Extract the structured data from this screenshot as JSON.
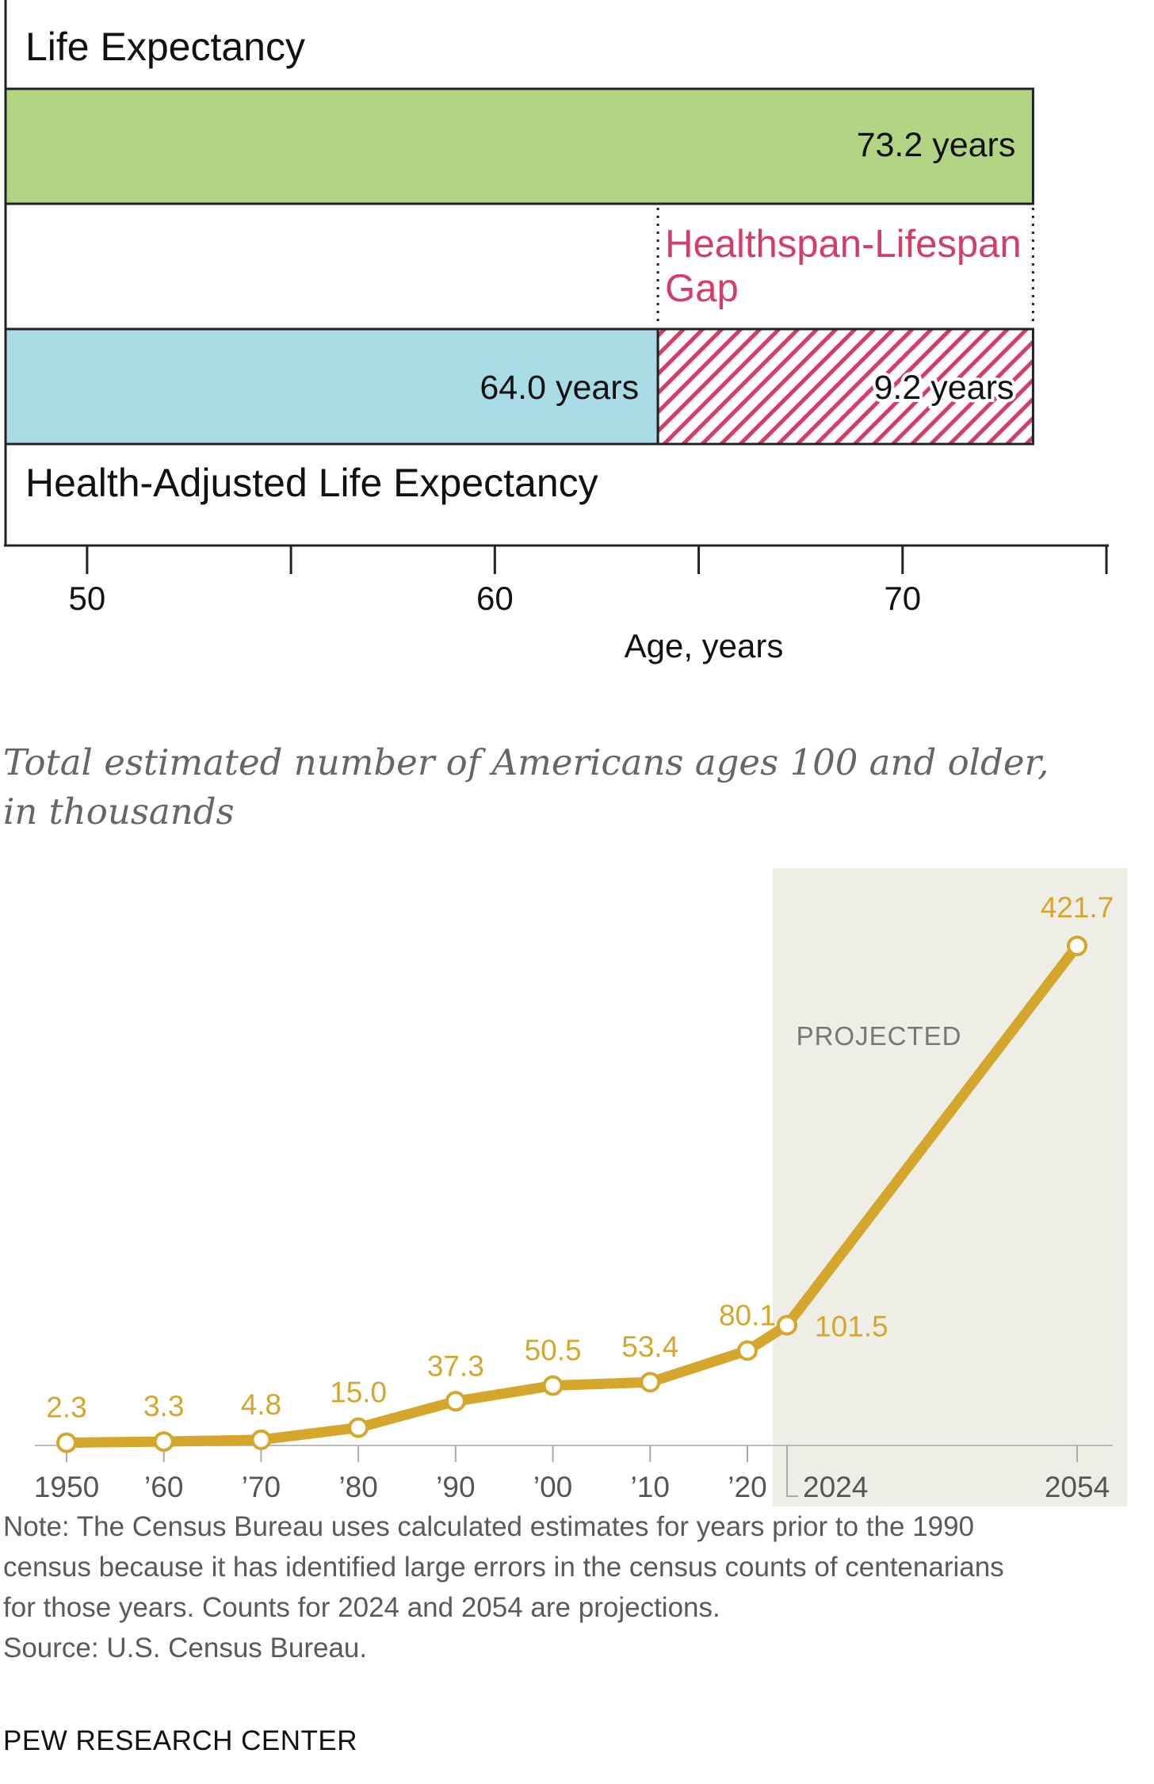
{
  "chart_data": [
    {
      "type": "bar",
      "orientation": "horizontal",
      "series": [
        {
          "name": "Life Expectancy",
          "start": 48,
          "value": 73.2,
          "label": "73.2 years",
          "color": "#b2d584"
        },
        {
          "name": "Health-Adjusted Life Expectancy",
          "start": 48,
          "value": 64.0,
          "label": "64.0 years",
          "color": "#a9dbe6"
        }
      ],
      "gap": {
        "name": "Healthspan-Lifespan Gap",
        "start": 64.0,
        "end": 73.2,
        "value": 9.2,
        "label": "9.2 years",
        "color": "#d43d67"
      },
      "xlabel": "Age, years",
      "xticks": [
        50,
        55,
        60,
        65,
        70,
        75
      ],
      "xtick_labels": {
        "50": "50",
        "60": "60",
        "70": "70"
      },
      "xlim": [
        48,
        75
      ]
    },
    {
      "type": "line",
      "title": "Total estimated number of Americans ages 100 and older, in thousands",
      "x": [
        1950,
        1960,
        1970,
        1980,
        1990,
        2000,
        2010,
        2020,
        2024,
        2054
      ],
      "values": [
        2.3,
        3.3,
        4.8,
        15.0,
        37.3,
        50.5,
        53.4,
        80.1,
        101.5,
        421.7
      ],
      "value_labels": [
        "2.3",
        "3.3",
        "4.8",
        "15.0",
        "37.3",
        "50.5",
        "53.4",
        "80.1",
        "101.5",
        "421.7"
      ],
      "x_tick_labels": [
        "1950",
        "’60",
        "’70",
        "’80",
        "’90",
        "’00",
        "’10",
        "’20",
        "2024",
        "2054"
      ],
      "projected_from": 2024,
      "projected_label": "PROJECTED",
      "color": "#d4a72c",
      "shade_color": "#efeee6",
      "ylim": [
        0,
        421.7
      ]
    }
  ],
  "footer": {
    "note_lines": [
      "Note: The Census Bureau uses calculated estimates for years prior to the 1990",
      "census because it has identified large errors in the census counts of centenarians",
      "for those years. Counts for 2024 and 2054 are projections."
    ],
    "source": "Source: U.S. Census Bureau.",
    "brand": "PEW RESEARCH CENTER"
  }
}
